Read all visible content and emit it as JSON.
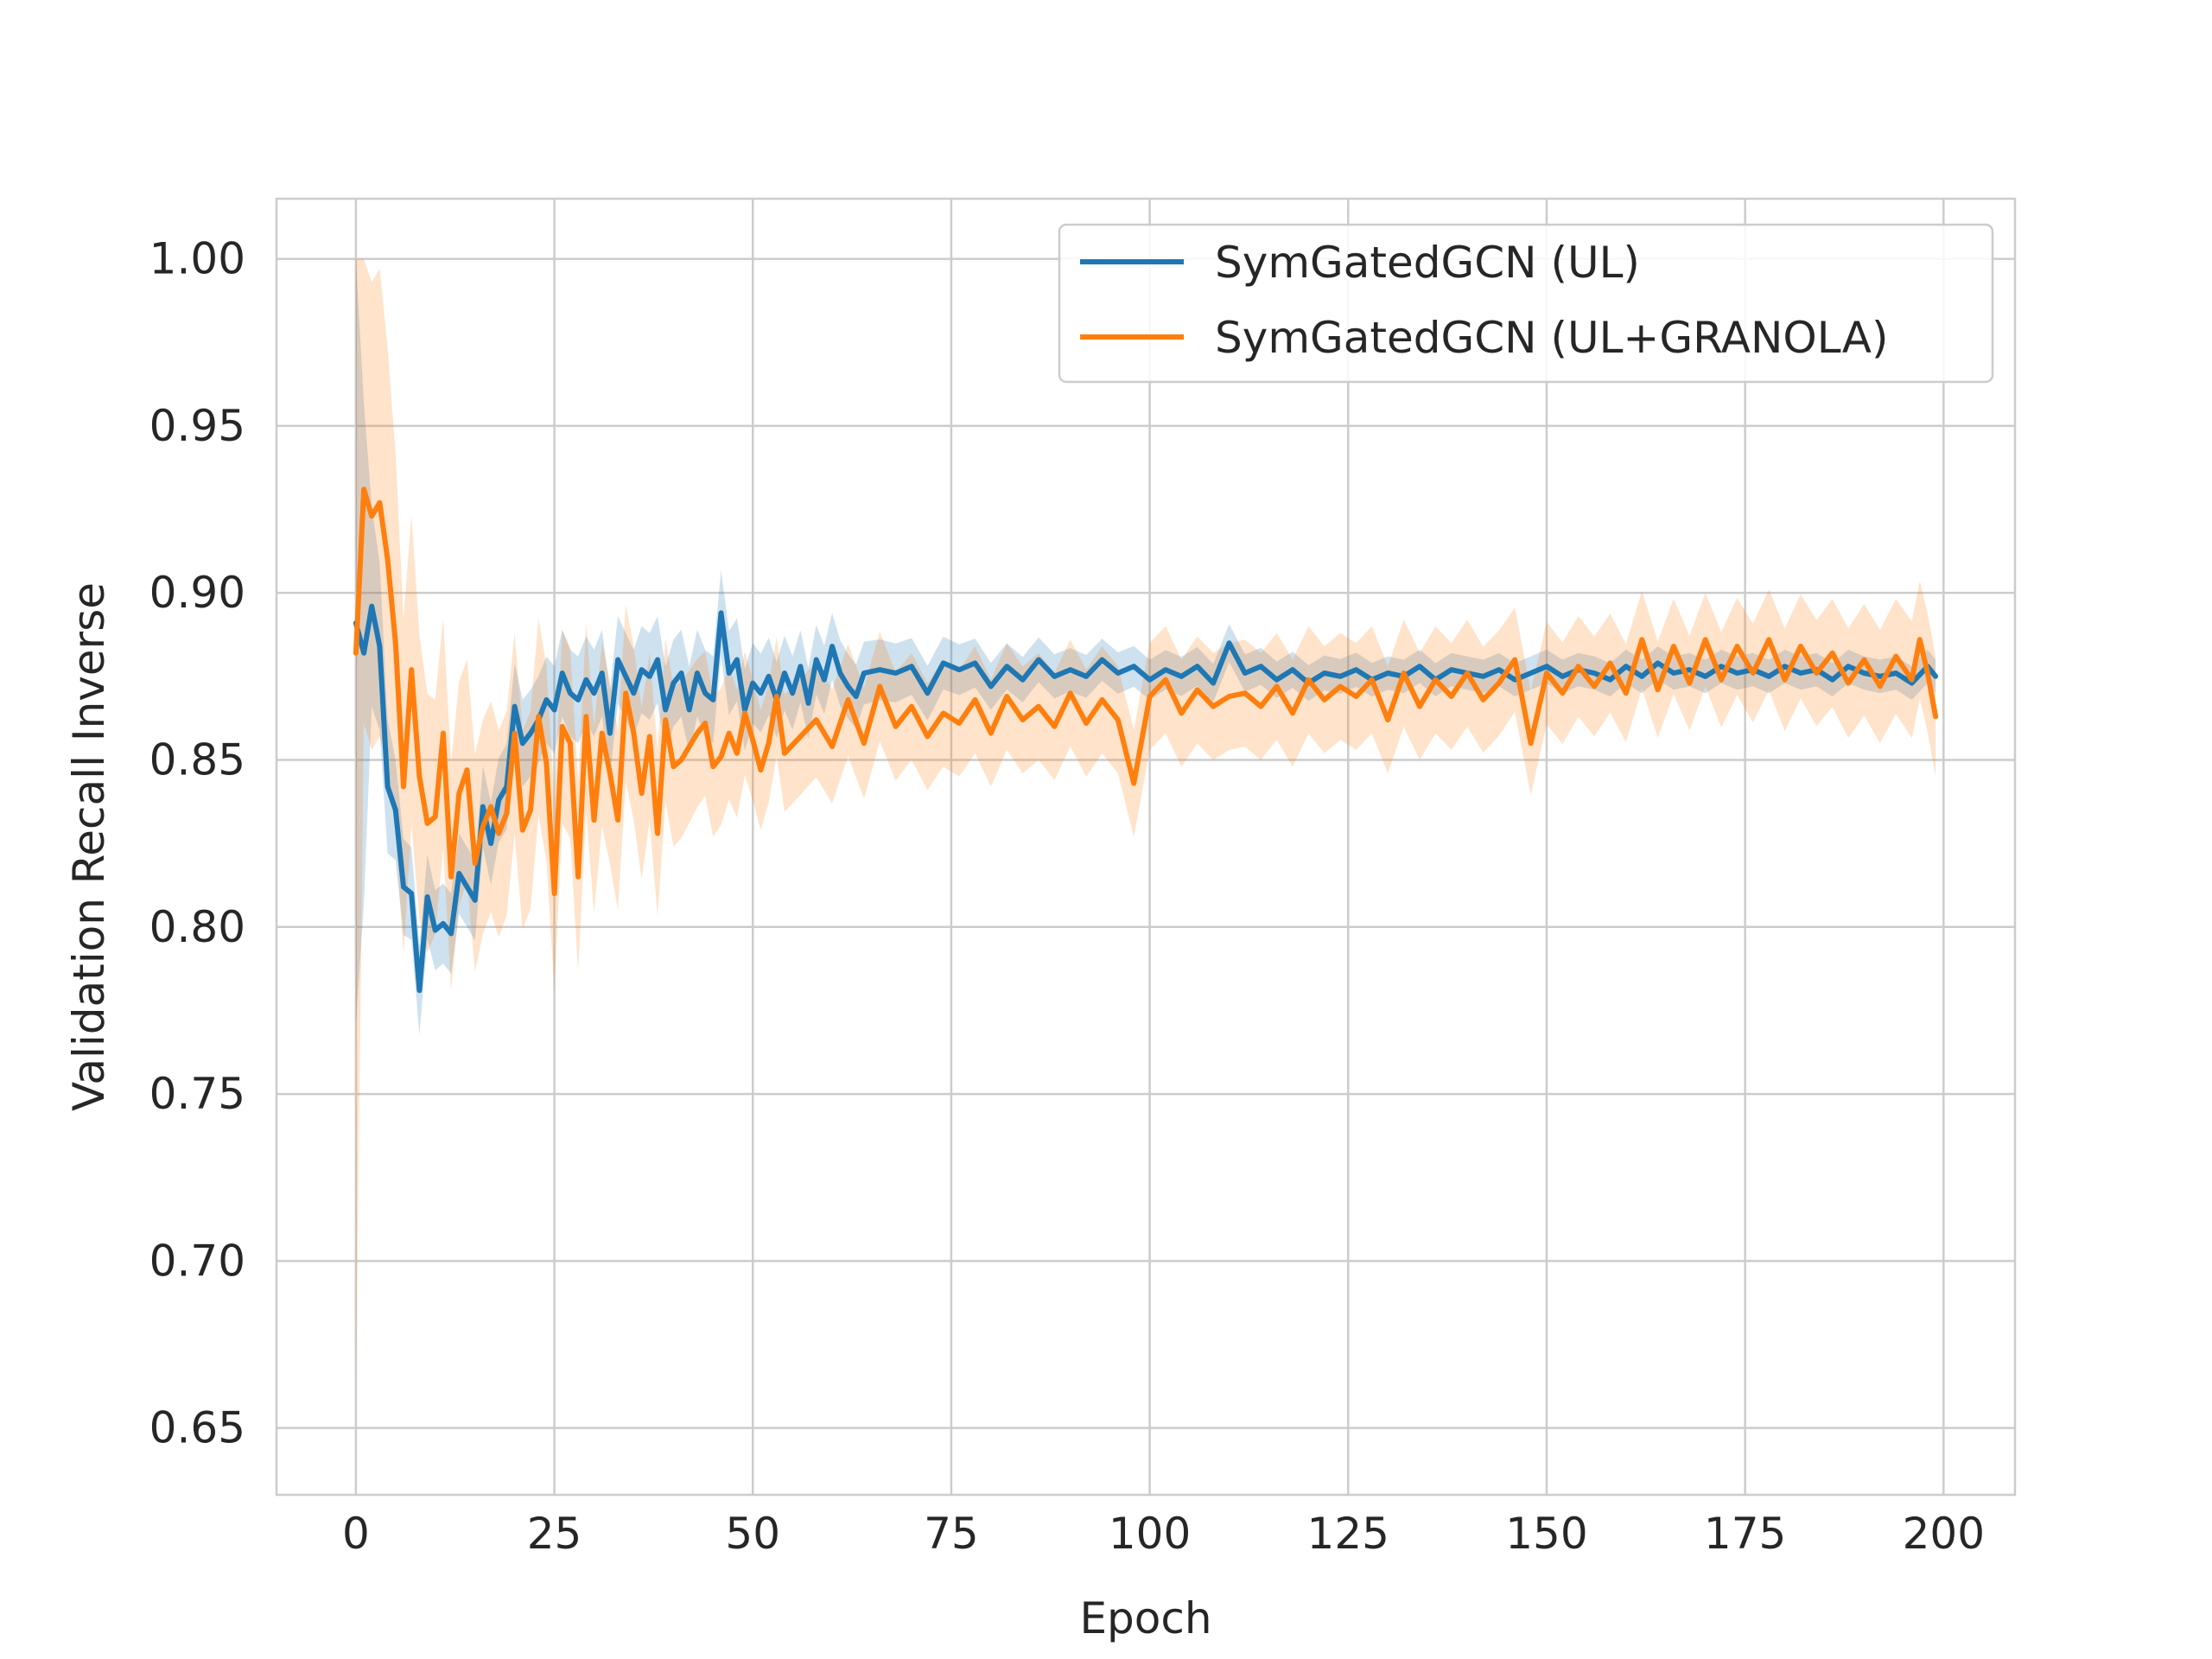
{
  "chart_data": {
    "type": "line",
    "xlabel": "Epoch",
    "ylabel": "Validation Recall Inverse",
    "xlim": [
      -10,
      209
    ],
    "ylim": [
      0.63,
      1.018
    ],
    "xticks": [
      0,
      25,
      50,
      75,
      100,
      125,
      150,
      175,
      200
    ],
    "yticks": [
      0.65,
      0.7,
      0.75,
      0.8,
      0.85,
      0.9,
      0.95,
      1.0
    ],
    "ytick_labels": [
      "0.65",
      "0.70",
      "0.75",
      "0.80",
      "0.85",
      "0.90",
      "0.95",
      "1.00"
    ],
    "grid": true,
    "legend_position": "upper-right",
    "series": [
      {
        "name": "SymGatedGCN (UL)",
        "color": "#1f77b4",
        "mean": [
          [
            0,
            0.891
          ],
          [
            1,
            0.882
          ],
          [
            2,
            0.896
          ],
          [
            3,
            0.884
          ],
          [
            4,
            0.842
          ],
          [
            5,
            0.835
          ],
          [
            6,
            0.812
          ],
          [
            7,
            0.81
          ],
          [
            8,
            0.781
          ],
          [
            9,
            0.809
          ],
          [
            10,
            0.799
          ],
          [
            11,
            0.801
          ],
          [
            12,
            0.798
          ],
          [
            13,
            0.816
          ],
          [
            14,
            0.812
          ],
          [
            15,
            0.808
          ],
          [
            16,
            0.836
          ],
          [
            17,
            0.825
          ],
          [
            18,
            0.838
          ],
          [
            19,
            0.842
          ],
          [
            20,
            0.866
          ],
          [
            21,
            0.855
          ],
          [
            22,
            0.858
          ],
          [
            23,
            0.862
          ],
          [
            24,
            0.868
          ],
          [
            25,
            0.865
          ],
          [
            26,
            0.876
          ],
          [
            27,
            0.87
          ],
          [
            28,
            0.868
          ],
          [
            29,
            0.874
          ],
          [
            30,
            0.87
          ],
          [
            31,
            0.876
          ],
          [
            32,
            0.858
          ],
          [
            33,
            0.88
          ],
          [
            34,
            0.875
          ],
          [
            35,
            0.87
          ],
          [
            36,
            0.877
          ],
          [
            37,
            0.875
          ],
          [
            38,
            0.88
          ],
          [
            39,
            0.865
          ],
          [
            40,
            0.873
          ],
          [
            41,
            0.876
          ],
          [
            42,
            0.865
          ],
          [
            43,
            0.876
          ],
          [
            44,
            0.87
          ],
          [
            45,
            0.868
          ],
          [
            46,
            0.894
          ],
          [
            47,
            0.876
          ],
          [
            48,
            0.88
          ],
          [
            49,
            0.865
          ],
          [
            50,
            0.873
          ],
          [
            51,
            0.87
          ],
          [
            52,
            0.875
          ],
          [
            53,
            0.868
          ],
          [
            54,
            0.876
          ],
          [
            55,
            0.87
          ],
          [
            56,
            0.878
          ],
          [
            57,
            0.867
          ],
          [
            58,
            0.88
          ],
          [
            59,
            0.874
          ],
          [
            60,
            0.884
          ],
          [
            61,
            0.876
          ],
          [
            62,
            0.872
          ],
          [
            63,
            0.869
          ],
          [
            64,
            0.876
          ],
          [
            66,
            0.877
          ],
          [
            68,
            0.876
          ],
          [
            70,
            0.878
          ],
          [
            72,
            0.87
          ],
          [
            74,
            0.879
          ],
          [
            76,
            0.877
          ],
          [
            78,
            0.879
          ],
          [
            80,
            0.872
          ],
          [
            82,
            0.878
          ],
          [
            84,
            0.874
          ],
          [
            86,
            0.88
          ],
          [
            88,
            0.875
          ],
          [
            90,
            0.877
          ],
          [
            92,
            0.875
          ],
          [
            94,
            0.88
          ],
          [
            96,
            0.876
          ],
          [
            98,
            0.878
          ],
          [
            100,
            0.874
          ],
          [
            102,
            0.877
          ],
          [
            104,
            0.875
          ],
          [
            106,
            0.878
          ],
          [
            108,
            0.873
          ],
          [
            110,
            0.885
          ],
          [
            112,
            0.876
          ],
          [
            114,
            0.878
          ],
          [
            116,
            0.874
          ],
          [
            118,
            0.877
          ],
          [
            120,
            0.873
          ],
          [
            122,
            0.876
          ],
          [
            124,
            0.875
          ],
          [
            126,
            0.877
          ],
          [
            128,
            0.874
          ],
          [
            130,
            0.876
          ],
          [
            132,
            0.875
          ],
          [
            134,
            0.878
          ],
          [
            136,
            0.874
          ],
          [
            138,
            0.877
          ],
          [
            140,
            0.876
          ],
          [
            142,
            0.875
          ],
          [
            144,
            0.877
          ],
          [
            146,
            0.874
          ],
          [
            148,
            0.876
          ],
          [
            150,
            0.878
          ],
          [
            152,
            0.875
          ],
          [
            154,
            0.877
          ],
          [
            156,
            0.876
          ],
          [
            158,
            0.874
          ],
          [
            160,
            0.878
          ],
          [
            162,
            0.875
          ],
          [
            164,
            0.879
          ],
          [
            166,
            0.876
          ],
          [
            168,
            0.877
          ],
          [
            170,
            0.875
          ],
          [
            172,
            0.878
          ],
          [
            174,
            0.876
          ],
          [
            176,
            0.877
          ],
          [
            178,
            0.875
          ],
          [
            180,
            0.878
          ],
          [
            182,
            0.876
          ],
          [
            184,
            0.877
          ],
          [
            186,
            0.874
          ],
          [
            188,
            0.878
          ],
          [
            190,
            0.876
          ],
          [
            192,
            0.875
          ],
          [
            194,
            0.876
          ],
          [
            196,
            0.873
          ],
          [
            198,
            0.878
          ],
          [
            199,
            0.875
          ]
        ],
        "band_halfwidth": [
          [
            0,
            0.12
          ],
          [
            2,
            0.03
          ],
          [
            5,
            0.015
          ],
          [
            10,
            0.012
          ],
          [
            15,
            0.012
          ],
          [
            20,
            0.013
          ],
          [
            30,
            0.013
          ],
          [
            45,
            0.013
          ],
          [
            60,
            0.01
          ],
          [
            80,
            0.007
          ],
          [
            100,
            0.006
          ],
          [
            130,
            0.005
          ],
          [
            160,
            0.005
          ],
          [
            200,
            0.005
          ]
        ]
      },
      {
        "name": "SymGatedGCN (UL+GRANOLA)",
        "color": "#ff7f0e",
        "mean": [
          [
            0,
            0.882
          ],
          [
            1,
            0.931
          ],
          [
            2,
            0.923
          ],
          [
            3,
            0.927
          ],
          [
            4,
            0.91
          ],
          [
            5,
            0.885
          ],
          [
            6,
            0.842
          ],
          [
            7,
            0.877
          ],
          [
            8,
            0.845
          ],
          [
            9,
            0.831
          ],
          [
            10,
            0.833
          ],
          [
            11,
            0.858
          ],
          [
            12,
            0.815
          ],
          [
            13,
            0.84
          ],
          [
            14,
            0.847
          ],
          [
            15,
            0.819
          ],
          [
            16,
            0.83
          ],
          [
            17,
            0.836
          ],
          [
            18,
            0.828
          ],
          [
            19,
            0.834
          ],
          [
            20,
            0.858
          ],
          [
            21,
            0.829
          ],
          [
            22,
            0.835
          ],
          [
            23,
            0.863
          ],
          [
            24,
            0.849
          ],
          [
            25,
            0.81
          ],
          [
            26,
            0.86
          ],
          [
            27,
            0.855
          ],
          [
            28,
            0.815
          ],
          [
            29,
            0.863
          ],
          [
            30,
            0.832
          ],
          [
            31,
            0.858
          ],
          [
            32,
            0.846
          ],
          [
            33,
            0.832
          ],
          [
            34,
            0.87
          ],
          [
            35,
            0.858
          ],
          [
            36,
            0.84
          ],
          [
            37,
            0.857
          ],
          [
            38,
            0.828
          ],
          [
            39,
            0.862
          ],
          [
            40,
            0.848
          ],
          [
            41,
            0.85
          ],
          [
            42,
            0.854
          ],
          [
            43,
            0.858
          ],
          [
            44,
            0.861
          ],
          [
            45,
            0.848
          ],
          [
            46,
            0.851
          ],
          [
            47,
            0.858
          ],
          [
            48,
            0.852
          ],
          [
            49,
            0.864
          ],
          [
            50,
            0.856
          ],
          [
            51,
            0.847
          ],
          [
            52,
            0.855
          ],
          [
            53,
            0.869
          ],
          [
            54,
            0.852
          ],
          [
            56,
            0.857
          ],
          [
            58,
            0.862
          ],
          [
            60,
            0.854
          ],
          [
            62,
            0.868
          ],
          [
            64,
            0.855
          ],
          [
            66,
            0.872
          ],
          [
            68,
            0.86
          ],
          [
            70,
            0.866
          ],
          [
            72,
            0.857
          ],
          [
            74,
            0.864
          ],
          [
            76,
            0.861
          ],
          [
            78,
            0.868
          ],
          [
            80,
            0.858
          ],
          [
            82,
            0.869
          ],
          [
            84,
            0.862
          ],
          [
            86,
            0.866
          ],
          [
            88,
            0.86
          ],
          [
            90,
            0.87
          ],
          [
            92,
            0.861
          ],
          [
            94,
            0.868
          ],
          [
            96,
            0.862
          ],
          [
            98,
            0.843
          ],
          [
            100,
            0.869
          ],
          [
            102,
            0.874
          ],
          [
            104,
            0.864
          ],
          [
            106,
            0.871
          ],
          [
            108,
            0.866
          ],
          [
            110,
            0.869
          ],
          [
            112,
            0.87
          ],
          [
            114,
            0.866
          ],
          [
            116,
            0.872
          ],
          [
            118,
            0.864
          ],
          [
            120,
            0.874
          ],
          [
            122,
            0.868
          ],
          [
            124,
            0.872
          ],
          [
            126,
            0.869
          ],
          [
            128,
            0.874
          ],
          [
            130,
            0.862
          ],
          [
            132,
            0.876
          ],
          [
            134,
            0.866
          ],
          [
            136,
            0.874
          ],
          [
            138,
            0.869
          ],
          [
            140,
            0.876
          ],
          [
            142,
            0.868
          ],
          [
            144,
            0.873
          ],
          [
            146,
            0.88
          ],
          [
            148,
            0.855
          ],
          [
            150,
            0.876
          ],
          [
            152,
            0.87
          ],
          [
            154,
            0.878
          ],
          [
            156,
            0.872
          ],
          [
            158,
            0.879
          ],
          [
            160,
            0.87
          ],
          [
            162,
            0.886
          ],
          [
            164,
            0.871
          ],
          [
            166,
            0.884
          ],
          [
            168,
            0.873
          ],
          [
            170,
            0.886
          ],
          [
            172,
            0.874
          ],
          [
            174,
            0.884
          ],
          [
            176,
            0.876
          ],
          [
            178,
            0.886
          ],
          [
            180,
            0.874
          ],
          [
            182,
            0.884
          ],
          [
            184,
            0.876
          ],
          [
            186,
            0.882
          ],
          [
            188,
            0.873
          ],
          [
            190,
            0.88
          ],
          [
            192,
            0.872
          ],
          [
            194,
            0.881
          ],
          [
            196,
            0.874
          ],
          [
            197,
            0.886
          ],
          [
            198,
            0.876
          ],
          [
            199,
            0.863
          ]
        ],
        "band_halfwidth": [
          [
            0,
            0.22
          ],
          [
            1,
            0.07
          ],
          [
            3,
            0.07
          ],
          [
            6,
            0.05
          ],
          [
            10,
            0.035
          ],
          [
            20,
            0.03
          ],
          [
            30,
            0.028
          ],
          [
            40,
            0.024
          ],
          [
            50,
            0.018
          ],
          [
            70,
            0.016
          ],
          [
            100,
            0.016
          ],
          [
            140,
            0.016
          ],
          [
            170,
            0.014
          ],
          [
            200,
            0.018
          ]
        ]
      }
    ]
  }
}
